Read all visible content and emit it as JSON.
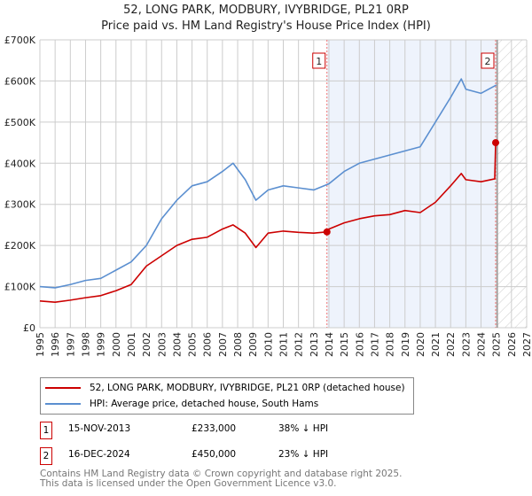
{
  "title": "52, LONG PARK, MODBURY, IVYBRIDGE, PL21 0RP",
  "subtitle": "Price paid vs. HM Land Registry's House Price Index (HPI)",
  "chart_data": {
    "type": "line",
    "title": "52, LONG PARK, MODBURY, IVYBRIDGE, PL21 0RP",
    "subtitle": "Price paid vs. HM Land Registry's House Price Index (HPI)",
    "xlim": [
      1995,
      2027
    ],
    "ylim": [
      0,
      700000
    ],
    "x_ticks": [
      "1995",
      "1996",
      "1997",
      "1998",
      "1999",
      "2000",
      "2001",
      "2002",
      "2003",
      "2004",
      "2005",
      "2006",
      "2007",
      "2008",
      "2009",
      "2010",
      "2011",
      "2012",
      "2013",
      "2014",
      "2015",
      "2016",
      "2017",
      "2018",
      "2019",
      "2020",
      "2021",
      "2022",
      "2023",
      "2024",
      "2025",
      "2026",
      "2027"
    ],
    "y_ticks": [
      {
        "v": 0,
        "label": "£0"
      },
      {
        "v": 100000,
        "label": "£100K"
      },
      {
        "v": 200000,
        "label": "£200K"
      },
      {
        "v": 300000,
        "label": "£300K"
      },
      {
        "v": 400000,
        "label": "£400K"
      },
      {
        "v": 500000,
        "label": "£500K"
      },
      {
        "v": 600000,
        "label": "£600K"
      },
      {
        "v": 700000,
        "label": "£700K"
      }
    ],
    "grid": true,
    "legend_placement": "below",
    "series": [
      {
        "name": "52, LONG PARK, MODBURY, IVYBRIDGE, PL21 0RP (detached house)",
        "color": "#cc0000",
        "x": [
          1995,
          1996,
          1997,
          1998,
          1999,
          2000,
          2001,
          2002,
          2003,
          2004,
          2005,
          2006,
          2007,
          2007.7,
          2008.5,
          2009.2,
          2010,
          2011,
          2012,
          2013,
          2013.87,
          2014,
          2015,
          2016,
          2017,
          2018,
          2019,
          2020,
          2021,
          2022,
          2022.7,
          2023,
          2024,
          2024.9,
          2024.96
        ],
        "y": [
          65000,
          62000,
          67000,
          73000,
          78000,
          90000,
          105000,
          150000,
          175000,
          200000,
          215000,
          220000,
          240000,
          250000,
          230000,
          195000,
          230000,
          235000,
          232000,
          230000,
          233000,
          240000,
          255000,
          265000,
          272000,
          275000,
          285000,
          280000,
          305000,
          345000,
          375000,
          360000,
          355000,
          362000,
          450000
        ]
      },
      {
        "name": "HPI: Average price, detached house, South Hams",
        "color": "#5b8fd0",
        "x": [
          1995,
          1996,
          1997,
          1998,
          1999,
          2000,
          2001,
          2002,
          2003,
          2004,
          2005,
          2006,
          2007,
          2007.7,
          2008.5,
          2009.2,
          2010,
          2011,
          2012,
          2013,
          2014,
          2015,
          2016,
          2017,
          2018,
          2019,
          2020,
          2021,
          2022,
          2022.7,
          2023,
          2024,
          2025
        ],
        "y": [
          100000,
          97000,
          105000,
          115000,
          120000,
          140000,
          160000,
          200000,
          265000,
          310000,
          345000,
          355000,
          380000,
          400000,
          360000,
          310000,
          335000,
          345000,
          340000,
          335000,
          350000,
          380000,
          400000,
          410000,
          420000,
          430000,
          440000,
          500000,
          560000,
          605000,
          580000,
          570000,
          590000
        ]
      }
    ],
    "annotations": [
      {
        "label": "1",
        "x": 2013.87,
        "y": 233000
      },
      {
        "label": "2",
        "x": 2024.96,
        "y": 450000
      }
    ],
    "forecast_start": 2025.07
  },
  "legend": [
    {
      "label": "52, LONG PARK, MODBURY, IVYBRIDGE, PL21 0RP (detached house)",
      "color": "#cc0000"
    },
    {
      "label": "HPI: Average price, detached house, South Hams",
      "color": "#5b8fd0"
    }
  ],
  "transactions": [
    {
      "num": "1",
      "date": "15-NOV-2013",
      "price": "£233,000",
      "hpi": "38% ↓ HPI"
    },
    {
      "num": "2",
      "date": "16-DEC-2024",
      "price": "£450,000",
      "hpi": "23% ↓ HPI"
    }
  ],
  "footer": {
    "line1": "Contains HM Land Registry data © Crown copyright and database right 2025.",
    "line2": "This data is licensed under the Open Government Licence v3.0."
  }
}
